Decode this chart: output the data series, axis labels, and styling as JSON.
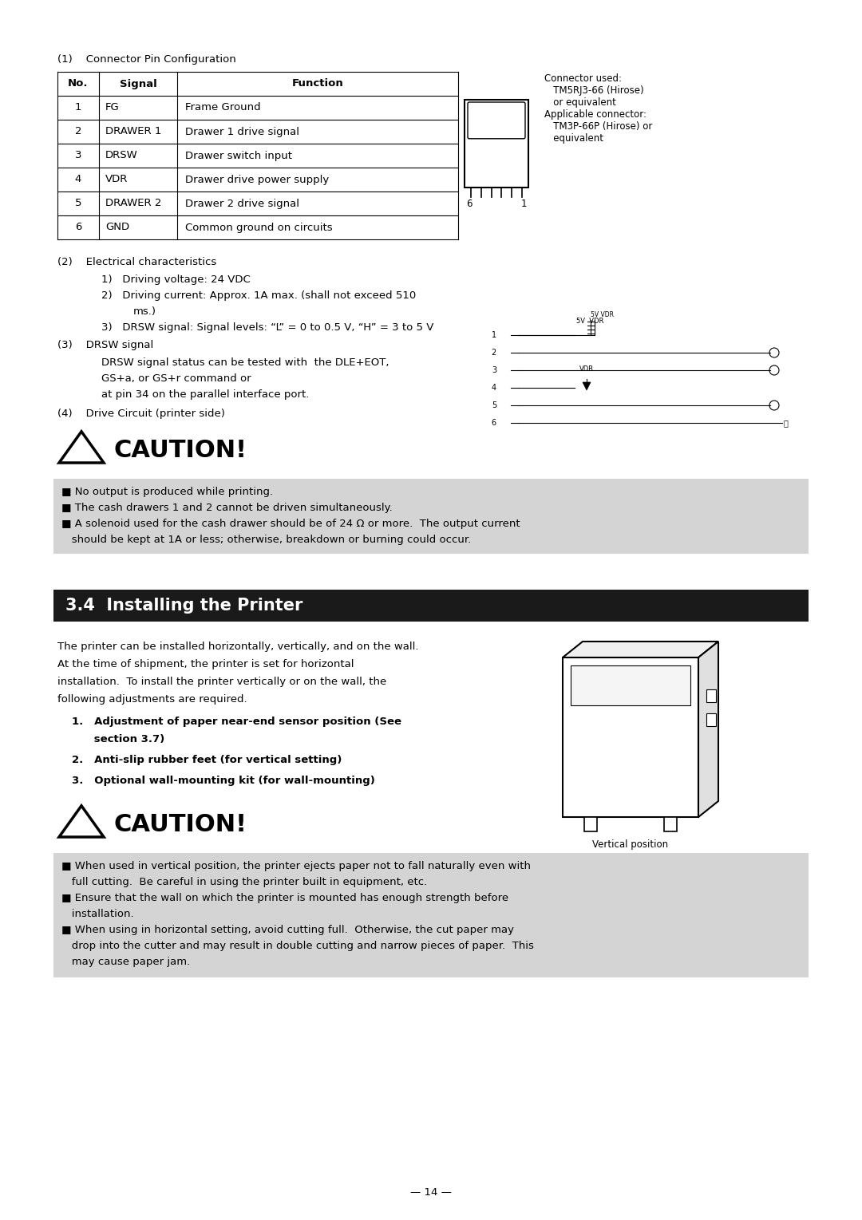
{
  "bg_color": "#ffffff",
  "section_header_text": "3.4  Installing the Printer",
  "section_header_bg": "#1a1a1a",
  "section_header_color": "#ffffff",
  "table_headers": [
    "No.",
    "Signal",
    "Function"
  ],
  "table_rows": [
    [
      "1",
      "FG",
      "Frame Ground"
    ],
    [
      "2",
      "DRAWER 1",
      "Drawer 1 drive signal"
    ],
    [
      "3",
      "DRSW",
      "Drawer switch input"
    ],
    [
      "4",
      "VDR",
      "Drawer drive power supply"
    ],
    [
      "5",
      "DRAWER 2",
      "Drawer 2 drive signal"
    ],
    [
      "6",
      "GND",
      "Common ground on circuits"
    ]
  ],
  "connector_note": "Connector used:\n   TM5RJ3-66 (Hirose)\n   or equivalent\nApplicable connector:\n   TM3P-66P (Hirose) or\n   equivalent",
  "section1_title": "(1)    Connector Pin Configuration",
  "section2_title": "(2)    Electrical characteristics",
  "elec_line1": "1)   Driving voltage: 24 VDC",
  "elec_line2a": "2)   Driving current: Approx. 1A max. (shall not exceed 510",
  "elec_line2b": "ms.)",
  "elec_line3": "3)   DRSW signal: Signal levels: “L” = 0 to 0.5 V, “H” = 3 to 5 V",
  "section3_title": "(3)    DRSW signal",
  "section3_body1": "DRSW signal status can be tested with  the DLE+EOT,",
  "section3_body2": "GS+a, or GS+r command or",
  "section3_body3": "at pin 34 on the parallel interface port.",
  "section4_title": "(4)    Drive Circuit (printer side)",
  "caution1_title": "CAUTION!",
  "caution1_items": [
    "■ No output is produced while printing.",
    "■ The cash drawers 1 and 2 cannot be driven simultaneously.",
    "■ A solenoid used for the cash drawer should be of 24 Ω or more.  The output current",
    "   should be kept at 1A or less; otherwise, breakdown or burning could occur."
  ],
  "caution1_bg": "#d4d4d4",
  "install_body1": "The printer can be installed horizontally, vertically, and on the wall.",
  "install_body2": "At the time of shipment, the printer is set for horizontal",
  "install_body3": "installation.  To install the printer vertically or on the wall, the",
  "install_body4": "following adjustments are required.",
  "install_item1a": "1.   Adjustment of paper near-end sensor position (See",
  "install_item1b": "      section 3.7)",
  "install_item2": "2.   Anti-slip rubber feet (for vertical setting)",
  "install_item3": "3.   Optional wall-mounting kit (for wall-mounting)",
  "vertical_position_label": "Vertical position",
  "caution2_title": "CAUTION!",
  "caution2_items": [
    "■ When used in vertical position, the printer ejects paper not to fall naturally even with",
    "   full cutting.  Be careful in using the printer built in equipment, etc.",
    "■ Ensure that the wall on which the printer is mounted has enough strength before",
    "   installation.",
    "■ When using in horizontal setting, avoid cutting full.  Otherwise, the cut paper may",
    "   drop into the cutter and may result in double cutting and narrow pieces of paper.  This",
    "   may cause paper jam."
  ],
  "caution2_bg": "#d4d4d4",
  "page_number": "— 14 —",
  "fs": 9.5,
  "fs_small": 8.5,
  "fs_header": 15,
  "fs_caution": 22
}
